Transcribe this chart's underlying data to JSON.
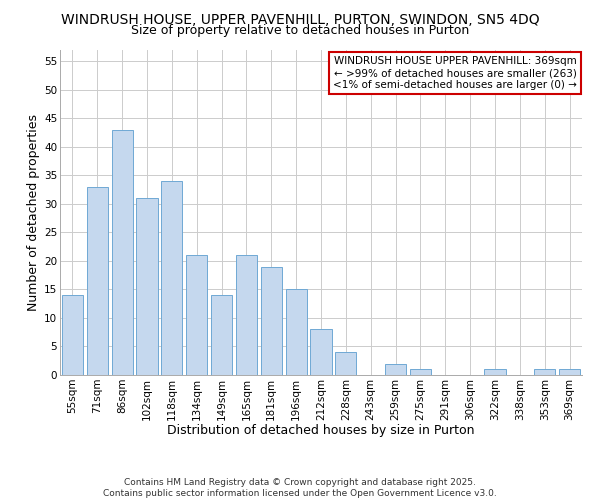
{
  "title": "WINDRUSH HOUSE, UPPER PAVENHILL, PURTON, SWINDON, SN5 4DQ",
  "subtitle": "Size of property relative to detached houses in Purton",
  "xlabel": "Distribution of detached houses by size in Purton",
  "ylabel": "Number of detached properties",
  "bar_color": "#c5d8ee",
  "bar_edge_color": "#6fa8d4",
  "categories": [
    "55sqm",
    "71sqm",
    "86sqm",
    "102sqm",
    "118sqm",
    "134sqm",
    "149sqm",
    "165sqm",
    "181sqm",
    "196sqm",
    "212sqm",
    "228sqm",
    "243sqm",
    "259sqm",
    "275sqm",
    "291sqm",
    "306sqm",
    "322sqm",
    "338sqm",
    "353sqm",
    "369sqm"
  ],
  "values": [
    14,
    33,
    43,
    31,
    34,
    21,
    14,
    21,
    19,
    15,
    8,
    4,
    0,
    2,
    1,
    0,
    0,
    1,
    0,
    1,
    1
  ],
  "ylim": [
    0,
    57
  ],
  "yticks": [
    0,
    5,
    10,
    15,
    20,
    25,
    30,
    35,
    40,
    45,
    50,
    55
  ],
  "legend_text_line1": "WINDRUSH HOUSE UPPER PAVENHILL: 369sqm",
  "legend_text_line2": "← >99% of detached houses are smaller (263)",
  "legend_text_line3": "<1% of semi-detached houses are larger (0) →",
  "legend_box_color": "#cc0000",
  "footer_line1": "Contains HM Land Registry data © Crown copyright and database right 2025.",
  "footer_line2": "Contains public sector information licensed under the Open Government Licence v3.0.",
  "grid_color": "#cccccc",
  "background_color": "#ffffff",
  "title_fontsize": 10,
  "subtitle_fontsize": 9,
  "axis_label_fontsize": 9,
  "tick_fontsize": 7.5,
  "legend_fontsize": 7.5,
  "footer_fontsize": 6.5
}
